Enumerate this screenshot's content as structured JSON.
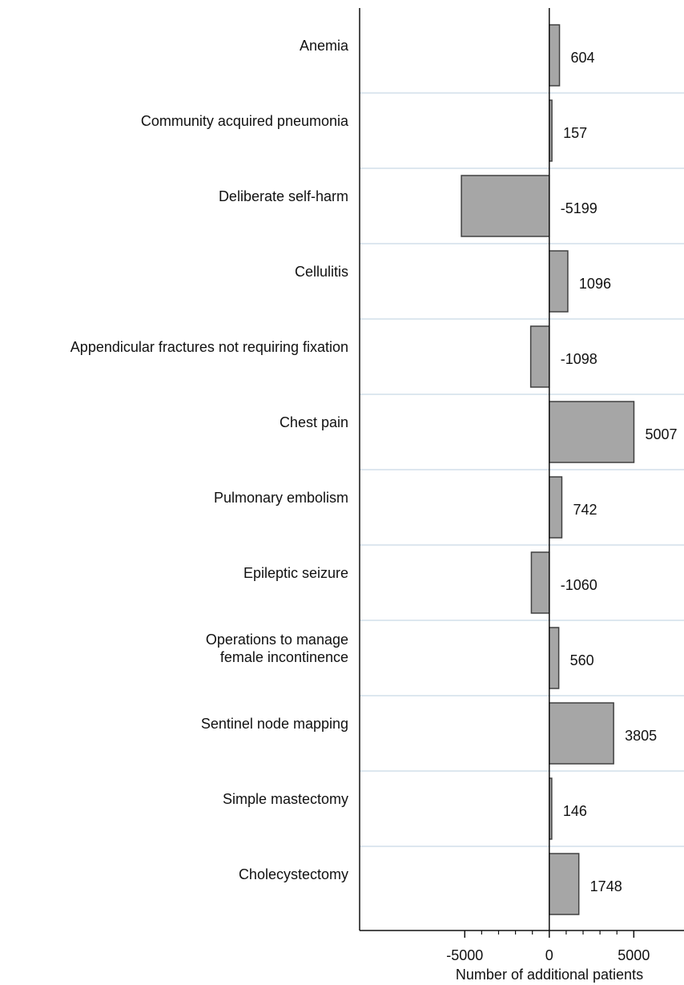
{
  "chart_data": {
    "type": "barh",
    "categories": [
      "Anemia",
      "Community acquired pneumonia",
      "Deliberate self-harm",
      "Cellulitis",
      "Appendicular fractures not requiring fixation",
      "Chest pain",
      "Pulmonary embolism",
      "Epileptic seizure",
      "Operations to manage\nfemale incontinence",
      "Sentinel node mapping",
      "Simple mastectomy",
      "Cholecystectomy"
    ],
    "values": [
      604,
      157,
      -5199,
      1096,
      -1098,
      5007,
      742,
      -1060,
      560,
      3805,
      146,
      1748
    ],
    "color": "#a6a6a6",
    "xlabel": "Number of additional patients",
    "xlim": [
      -11220,
      7970
    ],
    "xticks": [
      -5000,
      0,
      5000
    ],
    "xminorticks": [
      -4000,
      -3000,
      -2000,
      -1000,
      1000,
      2000,
      3000,
      4000
    ]
  }
}
